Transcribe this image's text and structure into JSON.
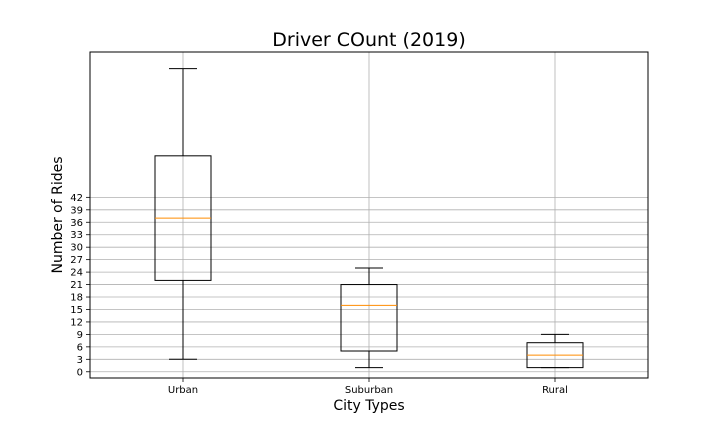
{
  "chart_data": {
    "type": "box",
    "title": "Driver COunt (2019)",
    "xlabel": "City Types",
    "ylabel": "Number of Rides",
    "categories": [
      "Urban",
      "Suburban",
      "Rural"
    ],
    "boxes": [
      {
        "name": "Urban",
        "whisker_low": 3,
        "q1": 22,
        "median": 37,
        "q3": 52,
        "whisker_high": 73
      },
      {
        "name": "Suburban",
        "whisker_low": 1,
        "q1": 5,
        "median": 16,
        "q3": 21,
        "whisker_high": 25
      },
      {
        "name": "Rural",
        "whisker_low": 1,
        "q1": 1,
        "median": 4,
        "q3": 7,
        "whisker_high": 9
      }
    ],
    "yticks": [
      0,
      3,
      6,
      9,
      12,
      15,
      18,
      21,
      24,
      27,
      30,
      33,
      36,
      39,
      42
    ],
    "ylim": [
      -1.5,
      77
    ],
    "grid": true,
    "colors": {
      "box": "#000000",
      "median": "#ff8c00",
      "grid": "#b0b0b0"
    }
  }
}
